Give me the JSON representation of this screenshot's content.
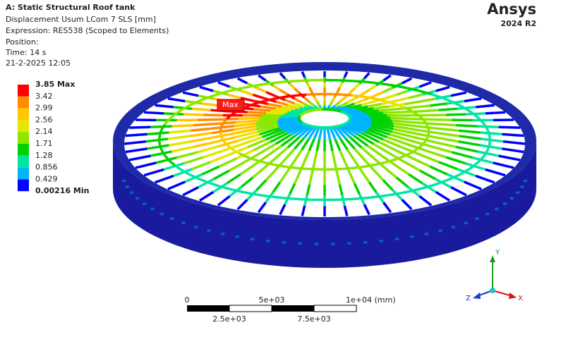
{
  "header": {
    "title": "A: Static Structural Roof tank",
    "lines": [
      "Displacement Usum LCom 7 SLS [mm]",
      "Expression: RES538 (Scoped to Elements)",
      "Position:",
      "Time: 14 s",
      "21-2-2025 12:05"
    ]
  },
  "logo": {
    "name": "Ansys",
    "version": "2024 R2"
  },
  "legend": {
    "labels": [
      "3.85 Max",
      "3.42",
      "2.99",
      "2.56",
      "2.14",
      "1.71",
      "1.28",
      "0.856",
      "0.429",
      "0.00216 Min"
    ],
    "colors": [
      "#ff0000",
      "#ff8c00",
      "#ffc800",
      "#e6e600",
      "#8ce600",
      "#00d200",
      "#00e6a0",
      "#00b4ff",
      "#0000ff"
    ]
  },
  "model": {
    "max_tag": "Max"
  },
  "scale_bar": {
    "top_labels": [
      "0",
      "5e+03",
      "1e+04 (mm)"
    ],
    "bottom_labels": [
      "2.5e+03",
      "7.5e+03"
    ]
  },
  "triad": {
    "x": "X",
    "y": "Y",
    "z": "Z"
  }
}
